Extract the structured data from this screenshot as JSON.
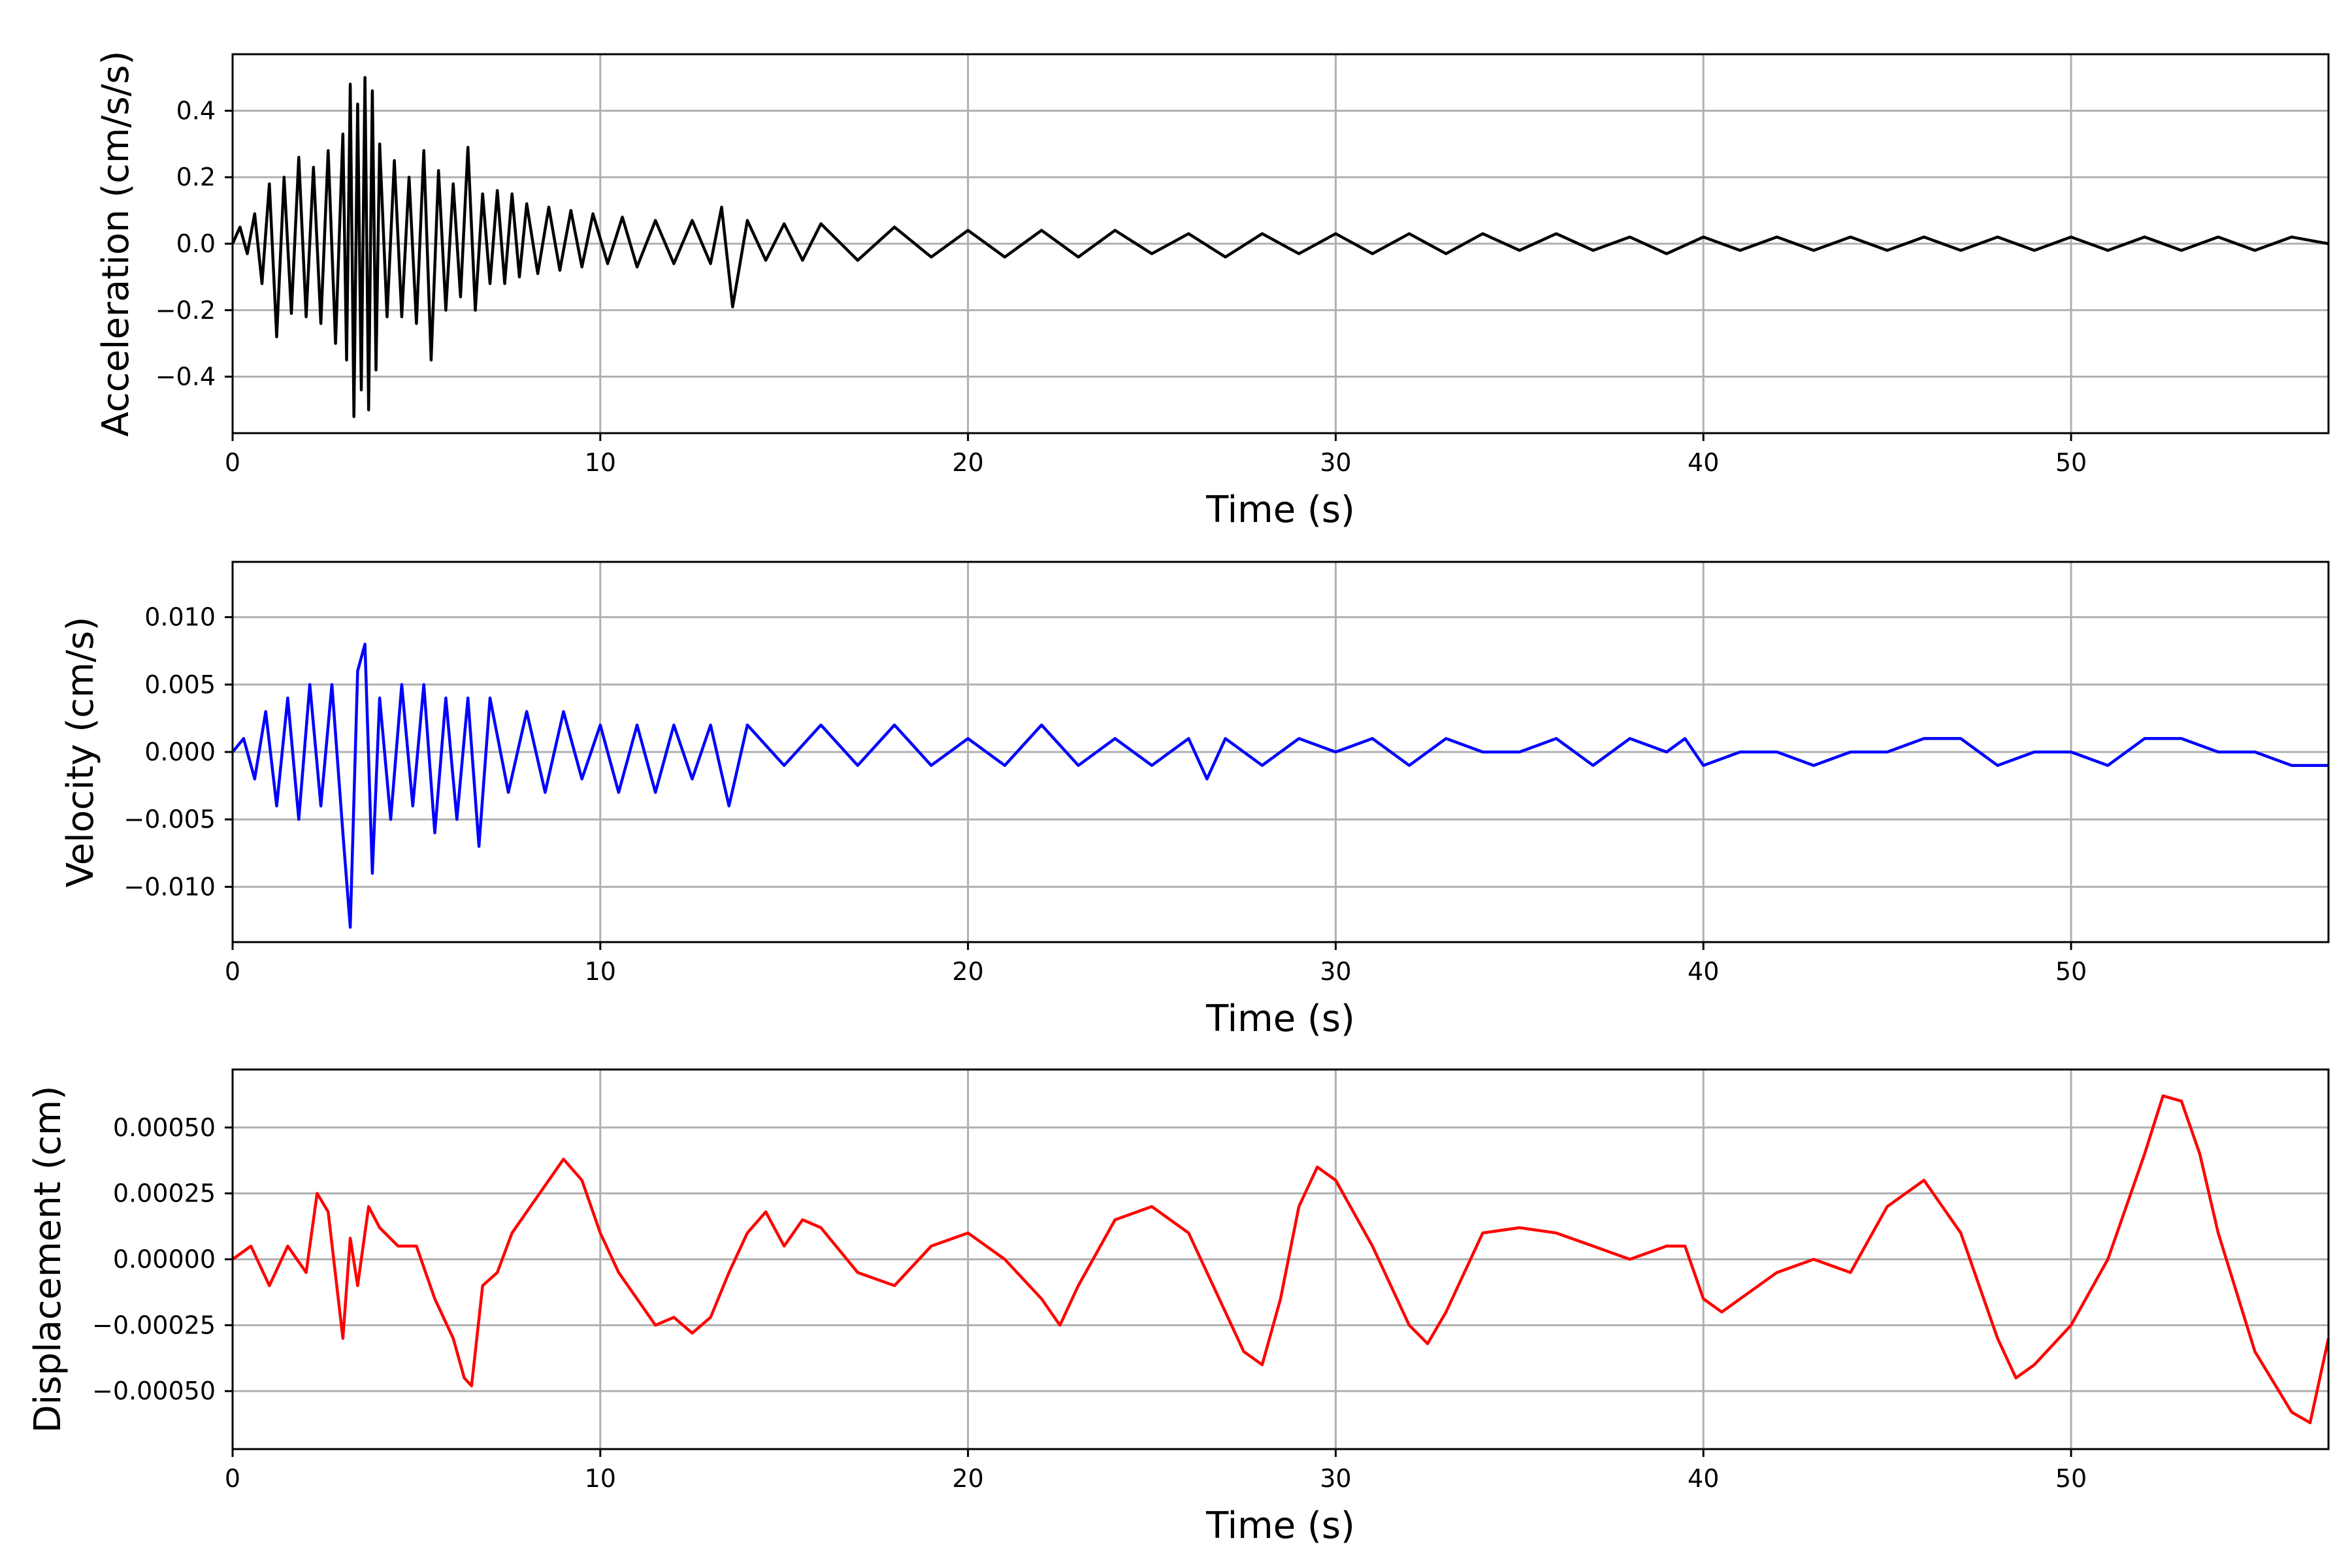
{
  "chart_data": [
    {
      "type": "line",
      "xlabel": "Time (s)",
      "ylabel": "Acceleration (cm/s/s)",
      "xlim": [
        0,
        57
      ],
      "ylim": [
        -0.57,
        0.57
      ],
      "xticks": [
        0,
        10,
        20,
        30,
        40,
        50
      ],
      "xtick_labels": [
        "0",
        "10",
        "20",
        "30",
        "40",
        "50"
      ],
      "yticks": [
        -0.4,
        -0.2,
        0.0,
        0.2,
        0.4
      ],
      "ytick_labels": [
        "−0.4",
        "−0.2",
        "0.0",
        "0.2",
        "0.4"
      ],
      "grid": true,
      "color": "#000000",
      "series": [
        {
          "x": [
            0.0,
            0.2,
            0.4,
            0.6,
            0.8,
            1.0,
            1.2,
            1.4,
            1.6,
            1.8,
            2.0,
            2.2,
            2.4,
            2.6,
            2.8,
            3.0,
            3.1,
            3.2,
            3.3,
            3.4,
            3.5,
            3.6,
            3.7,
            3.8,
            3.9,
            4.0,
            4.2,
            4.4,
            4.6,
            4.8,
            5.0,
            5.2,
            5.4,
            5.6,
            5.8,
            6.0,
            6.2,
            6.4,
            6.6,
            6.8,
            7.0,
            7.2,
            7.4,
            7.6,
            7.8,
            8.0,
            8.3,
            8.6,
            8.9,
            9.2,
            9.5,
            9.8,
            10.2,
            10.6,
            11.0,
            11.5,
            12.0,
            12.5,
            13.0,
            13.3,
            13.6,
            14.0,
            14.5,
            15.0,
            15.5,
            16.0,
            17.0,
            18.0,
            19.0,
            20.0,
            21.0,
            22.0,
            23.0,
            24.0,
            25.0,
            26.0,
            27.0,
            28.0,
            29.0,
            30.0,
            31.0,
            32.0,
            33.0,
            34.0,
            35.0,
            36.0,
            37.0,
            38.0,
            39.0,
            40.0,
            41.0,
            42.0,
            43.0,
            44.0,
            45.0,
            46.0,
            47.0,
            48.0,
            49.0,
            50.0,
            51.0,
            52.0,
            53.0,
            54.0,
            55.0,
            56.0,
            57.0
          ],
          "y": [
            0.0,
            0.05,
            -0.03,
            0.09,
            -0.12,
            0.18,
            -0.28,
            0.2,
            -0.21,
            0.26,
            -0.22,
            0.23,
            -0.24,
            0.28,
            -0.3,
            0.33,
            -0.35,
            0.48,
            -0.52,
            0.42,
            -0.44,
            0.5,
            -0.5,
            0.46,
            -0.38,
            0.3,
            -0.22,
            0.25,
            -0.22,
            0.2,
            -0.24,
            0.28,
            -0.35,
            0.22,
            -0.2,
            0.18,
            -0.16,
            0.29,
            -0.2,
            0.15,
            -0.12,
            0.16,
            -0.12,
            0.15,
            -0.1,
            0.12,
            -0.09,
            0.11,
            -0.08,
            0.1,
            -0.07,
            0.09,
            -0.06,
            0.08,
            -0.07,
            0.07,
            -0.06,
            0.07,
            -0.06,
            0.11,
            -0.19,
            0.07,
            -0.05,
            0.06,
            -0.05,
            0.06,
            -0.05,
            0.05,
            -0.04,
            0.04,
            -0.04,
            0.04,
            -0.04,
            0.04,
            -0.03,
            0.03,
            -0.04,
            0.03,
            -0.03,
            0.03,
            -0.03,
            0.03,
            -0.03,
            0.03,
            -0.02,
            0.03,
            -0.02,
            0.02,
            -0.03,
            0.02,
            -0.02,
            0.02,
            -0.02,
            0.02,
            -0.02,
            0.02,
            -0.02,
            0.02,
            -0.02,
            0.02,
            -0.02,
            0.02,
            -0.02,
            0.02,
            -0.02,
            0.02,
            0.0
          ]
        }
      ]
    },
    {
      "type": "line",
      "xlabel": "Time (s)",
      "ylabel": "Velocity (cm/s)",
      "xlim": [
        0,
        57
      ],
      "ylim": [
        -0.0141,
        0.0141
      ],
      "xticks": [
        0,
        10,
        20,
        30,
        40,
        50
      ],
      "xtick_labels": [
        "0",
        "10",
        "20",
        "30",
        "40",
        "50"
      ],
      "yticks": [
        -0.01,
        -0.005,
        0.0,
        0.005,
        0.01
      ],
      "ytick_labels": [
        "−0.010",
        "−0.005",
        "0.000",
        "0.005",
        "0.010"
      ],
      "grid": true,
      "color": "#0000ff",
      "series": [
        {
          "x": [
            0.0,
            0.3,
            0.6,
            0.9,
            1.2,
            1.5,
            1.8,
            2.1,
            2.4,
            2.7,
            3.0,
            3.2,
            3.4,
            3.6,
            3.8,
            4.0,
            4.3,
            4.6,
            4.9,
            5.2,
            5.5,
            5.8,
            6.1,
            6.4,
            6.7,
            7.0,
            7.5,
            8.0,
            8.5,
            9.0,
            9.5,
            10.0,
            10.5,
            11.0,
            11.5,
            12.0,
            12.5,
            13.0,
            13.5,
            14.0,
            15.0,
            16.0,
            17.0,
            18.0,
            19.0,
            20.0,
            21.0,
            22.0,
            23.0,
            24.0,
            25.0,
            26.0,
            26.5,
            27.0,
            28.0,
            29.0,
            30.0,
            31.0,
            32.0,
            33.0,
            34.0,
            35.0,
            36.0,
            37.0,
            38.0,
            39.0,
            39.5,
            40.0,
            41.0,
            42.0,
            43.0,
            44.0,
            45.0,
            46.0,
            47.0,
            47.5,
            48.0,
            49.0,
            50.0,
            51.0,
            52.0,
            53.0,
            54.0,
            55.0,
            56.0,
            57.0
          ],
          "y": [
            0.0,
            0.001,
            -0.002,
            0.003,
            -0.004,
            0.004,
            -0.005,
            0.005,
            -0.004,
            0.005,
            -0.006,
            -0.013,
            0.006,
            0.008,
            -0.009,
            0.004,
            -0.005,
            0.005,
            -0.004,
            0.005,
            -0.006,
            0.004,
            -0.005,
            0.004,
            -0.007,
            0.004,
            -0.003,
            0.003,
            -0.003,
            0.003,
            -0.002,
            0.002,
            -0.003,
            0.002,
            -0.003,
            0.002,
            -0.002,
            0.002,
            -0.004,
            0.002,
            -0.001,
            0.002,
            -0.001,
            0.002,
            -0.001,
            0.001,
            -0.001,
            0.002,
            -0.001,
            0.001,
            -0.001,
            0.001,
            -0.002,
            0.001,
            -0.001,
            0.001,
            0.0,
            0.001,
            -0.001,
            0.001,
            0.0,
            0.0,
            0.001,
            -0.001,
            0.001,
            0.0,
            0.001,
            -0.001,
            0.0,
            0.0,
            -0.001,
            0.0,
            0.0,
            0.001,
            0.001,
            0.0,
            -0.001,
            0.0,
            0.0,
            -0.001,
            0.001,
            0.001,
            0.0,
            0.0,
            -0.001,
            -0.001
          ]
        }
      ]
    },
    {
      "type": "line",
      "xlabel": "Time (s)",
      "ylabel": "Displacement (cm)",
      "xlim": [
        0,
        57
      ],
      "ylim": [
        -0.00072,
        0.00072
      ],
      "xticks": [
        0,
        10,
        20,
        30,
        40,
        50
      ],
      "xtick_labels": [
        "0",
        "10",
        "20",
        "30",
        "40",
        "50"
      ],
      "yticks": [
        -0.0005,
        -0.00025,
        0.0,
        0.00025,
        0.0005
      ],
      "ytick_labels": [
        "−0.00050",
        "−0.00025",
        "0.00000",
        "0.00025",
        "0.00050"
      ],
      "grid": true,
      "color": "#ff0000",
      "series": [
        {
          "x": [
            0.0,
            0.5,
            1.0,
            1.5,
            2.0,
            2.3,
            2.6,
            3.0,
            3.2,
            3.4,
            3.7,
            4.0,
            4.5,
            5.0,
            5.5,
            6.0,
            6.3,
            6.5,
            6.8,
            7.2,
            7.6,
            8.0,
            8.5,
            9.0,
            9.5,
            10.0,
            10.5,
            11.0,
            11.5,
            12.0,
            12.5,
            13.0,
            13.5,
            14.0,
            14.5,
            15.0,
            15.5,
            16.0,
            17.0,
            18.0,
            19.0,
            20.0,
            21.0,
            22.0,
            22.5,
            23.0,
            24.0,
            25.0,
            26.0,
            27.0,
            27.5,
            28.0,
            28.5,
            29.0,
            29.5,
            30.0,
            31.0,
            32.0,
            32.5,
            33.0,
            34.0,
            35.0,
            36.0,
            37.0,
            38.0,
            39.0,
            39.5,
            40.0,
            40.5,
            41.0,
            42.0,
            43.0,
            44.0,
            45.0,
            46.0,
            47.0,
            48.0,
            48.5,
            49.0,
            50.0,
            51.0,
            52.0,
            52.5,
            53.0,
            53.5,
            54.0,
            55.0,
            56.0,
            56.5,
            57.0
          ],
          "y": [
            0.0,
            5e-05,
            -0.0001,
            5e-05,
            -5e-05,
            0.00025,
            0.00018,
            -0.0003,
            8e-05,
            -0.0001,
            0.0002,
            0.00012,
            5e-05,
            5e-05,
            -0.00015,
            -0.0003,
            -0.00045,
            -0.00048,
            -0.0001,
            -5e-05,
            0.0001,
            0.00018,
            0.00028,
            0.00038,
            0.0003,
            0.0001,
            -5e-05,
            -0.00015,
            -0.00025,
            -0.00022,
            -0.00028,
            -0.00022,
            -5e-05,
            0.0001,
            0.00018,
            5e-05,
            0.00015,
            0.00012,
            -5e-05,
            -0.0001,
            5e-05,
            0.0001,
            0.0,
            -0.00015,
            -0.00025,
            -0.0001,
            0.00015,
            0.0002,
            0.0001,
            -0.0002,
            -0.00035,
            -0.0004,
            -0.00015,
            0.0002,
            0.00035,
            0.0003,
            5e-05,
            -0.00025,
            -0.00032,
            -0.0002,
            0.0001,
            0.00012,
            0.0001,
            5e-05,
            0.0,
            5e-05,
            5e-05,
            -0.00015,
            -0.0002,
            -0.00015,
            -5e-05,
            0.0,
            -5e-05,
            0.0002,
            0.0003,
            0.0001,
            -0.0003,
            -0.00045,
            -0.0004,
            -0.00025,
            0.0,
            0.0004,
            0.00062,
            0.0006,
            0.0004,
            0.0001,
            -0.00035,
            -0.00058,
            -0.00062,
            -0.0003
          ]
        }
      ]
    }
  ]
}
